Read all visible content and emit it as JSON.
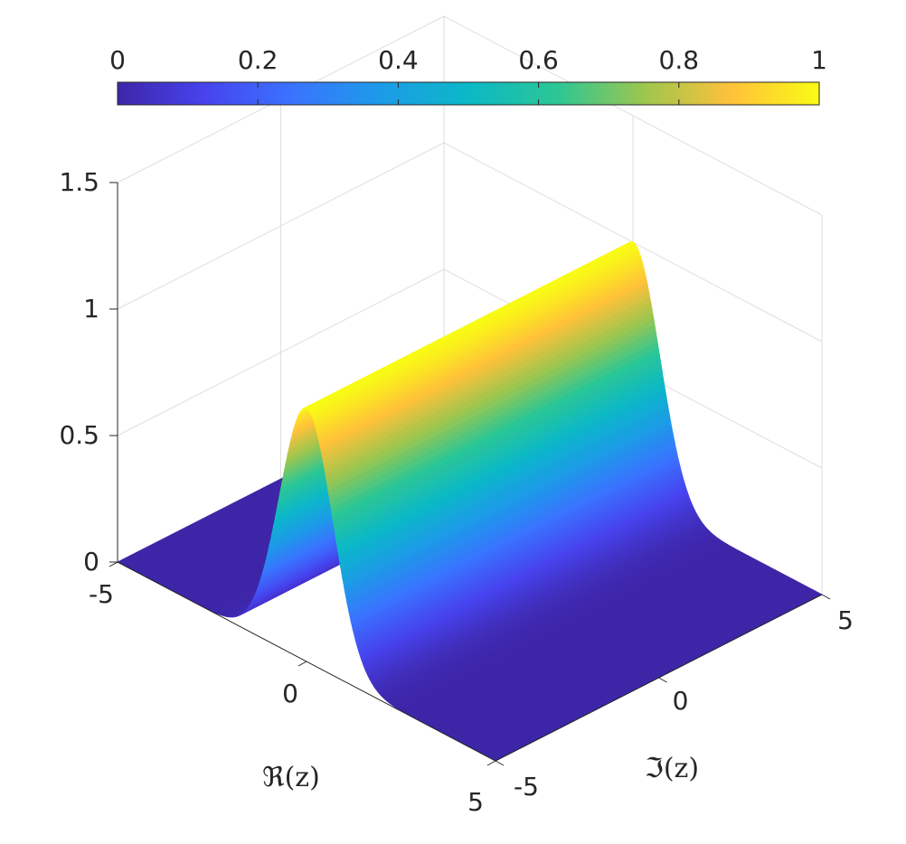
{
  "chart_data": {
    "type": "surface",
    "title": "",
    "xlabel": "ℜ(z)",
    "ylabel": "ℑ(z)",
    "zlabel": "",
    "x_range": [
      -5,
      5
    ],
    "y_range": [
      -5,
      5
    ],
    "z_range": [
      0,
      1.5
    ],
    "x_ticks": [
      "-5",
      "0",
      "5"
    ],
    "y_ticks": [
      "-5",
      "0",
      "5"
    ],
    "z_ticks": [
      "0",
      "0.5",
      "1",
      "1.5"
    ],
    "surface": {
      "function": "z = exp(-x^2), constant along Im(z)",
      "peak_value": 1.0,
      "peak_at_x": 0,
      "x_samples": [
        -5,
        -4,
        -3,
        -2.5,
        -2,
        -1.75,
        -1.5,
        -1.25,
        -1,
        -0.75,
        -0.5,
        -0.25,
        0,
        0.25,
        0.5,
        0.75,
        1,
        1.25,
        1.5,
        1.75,
        2,
        2.5,
        3,
        4,
        5
      ],
      "z_samples": [
        0,
        0,
        0.0001,
        0.0019,
        0.0183,
        0.0468,
        0.1054,
        0.2096,
        0.3679,
        0.5698,
        0.7788,
        0.9394,
        1.0,
        0.9394,
        0.7788,
        0.5698,
        0.3679,
        0.2096,
        0.1054,
        0.0468,
        0.0183,
        0.0019,
        0.0001,
        0,
        0
      ]
    },
    "colorbar": {
      "location": "top",
      "colormap": "parula",
      "range": [
        0,
        1
      ],
      "ticks": [
        "0",
        "0.2",
        "0.4",
        "0.6",
        "0.8",
        "1"
      ]
    },
    "grid": true,
    "view": "3d-isometric",
    "colors": {
      "low": "#3E26A8",
      "mid": "#12BEB9",
      "high": "#F9FB15",
      "grid": "#DEDEDE",
      "axis_text": "#262626"
    }
  }
}
